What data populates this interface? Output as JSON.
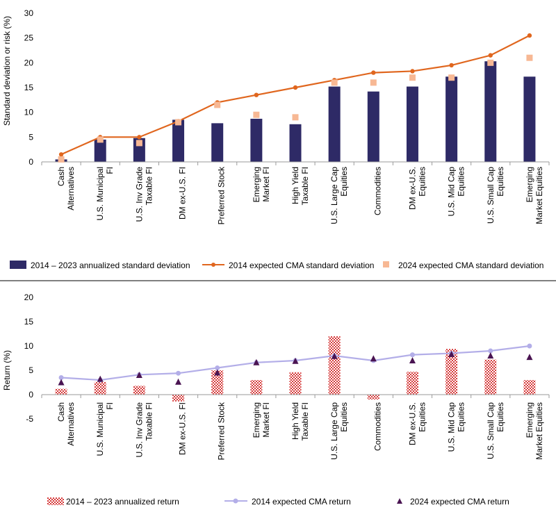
{
  "colors": {
    "bar_navy": "#2e2a66",
    "line_orange": "#e0661e",
    "square_peach": "#f7b894",
    "bar_red": "#d63a3a",
    "line_lavender": "#b3aee8",
    "triangle_purple": "#4a1452",
    "divider": "#555555",
    "axis": "#9a9a9a"
  },
  "chart_data": [
    {
      "type": "bar",
      "ylabel": "Standard deviation or risk (%)",
      "ylim": [
        0,
        30
      ],
      "yticks": [
        0,
        5,
        10,
        15,
        20,
        25,
        30
      ],
      "categories": [
        [
          "Cash",
          "Alternatives"
        ],
        [
          "U.S. Municipal",
          "FI"
        ],
        [
          "U.S. Inv Grade",
          "Taxable FI"
        ],
        [
          "DM ex-U.S. FI"
        ],
        [
          "Preferred Stock"
        ],
        [
          "Emerging",
          "Market FI"
        ],
        [
          "High Yield",
          "Taxable FI"
        ],
        [
          "U.S. Large Cap",
          "Equities"
        ],
        [
          "Commodities"
        ],
        [
          "DM ex-U.S.",
          "Equities"
        ],
        [
          "U.S. Mid Cap",
          "Equities"
        ],
        [
          "U.S. Small Cap",
          "Equities"
        ],
        [
          "Emerging",
          "Market Equities"
        ]
      ],
      "series": [
        {
          "name": "2014 – 2023 annualized standard deviation",
          "kind": "bar",
          "values": [
            0.5,
            4.5,
            4.8,
            8.5,
            7.8,
            8.7,
            7.6,
            15.2,
            14.2,
            15.2,
            17.2,
            20.3,
            17.2
          ]
        },
        {
          "name": "2014 expected CMA standard deviation",
          "kind": "line",
          "values": [
            1.5,
            5.0,
            5.0,
            8.2,
            12.0,
            13.5,
            15.0,
            16.5,
            18.0,
            18.3,
            19.5,
            21.5,
            25.5
          ]
        },
        {
          "name": "2024 expected CMA standard deviation",
          "kind": "square",
          "values": [
            0.5,
            4.5,
            3.8,
            8.0,
            11.5,
            9.5,
            9.0,
            16.0,
            16.0,
            17.0,
            17.0,
            20.0,
            21.0
          ]
        }
      ]
    },
    {
      "type": "bar",
      "ylabel": "Return (%)",
      "ylim": [
        -5,
        20
      ],
      "yticks": [
        -5,
        0,
        5,
        10,
        15,
        20
      ],
      "categories": [
        [
          "Cash",
          "Alternatives"
        ],
        [
          "U.S. Municipal",
          "FI"
        ],
        [
          "U.S. Inv Grade",
          "Taxable FI"
        ],
        [
          "DM ex-U.S. FI"
        ],
        [
          "Preferred Stock"
        ],
        [
          "Emerging",
          "Market FI"
        ],
        [
          "High Yield",
          "Taxable FI"
        ],
        [
          "U.S. Large Cap",
          "Equities"
        ],
        [
          "Commodities"
        ],
        [
          "DM ex-U.S.",
          "Equities"
        ],
        [
          "U.S. Mid Cap",
          "Equities"
        ],
        [
          "U.S. Small Cap",
          "Equities"
        ],
        [
          "Emerging",
          "Market Equities"
        ]
      ],
      "series": [
        {
          "name": "2014 – 2023 annualized return",
          "kind": "bar",
          "values": [
            1.2,
            2.6,
            1.8,
            -1.4,
            5.0,
            3.0,
            4.6,
            12.0,
            -1.0,
            4.7,
            9.4,
            7.2,
            3.0
          ]
        },
        {
          "name": "2014 expected CMA return",
          "kind": "line",
          "values": [
            3.5,
            3.0,
            4.1,
            4.4,
            5.5,
            6.6,
            7.0,
            8.0,
            7.0,
            8.2,
            8.5,
            9.0,
            10.0
          ]
        },
        {
          "name": "2024 expected CMA return",
          "kind": "triangle",
          "values": [
            2.5,
            3.2,
            4.0,
            2.6,
            4.5,
            6.6,
            6.9,
            7.9,
            7.4,
            7.0,
            8.3,
            8.0,
            7.7
          ]
        }
      ]
    }
  ]
}
